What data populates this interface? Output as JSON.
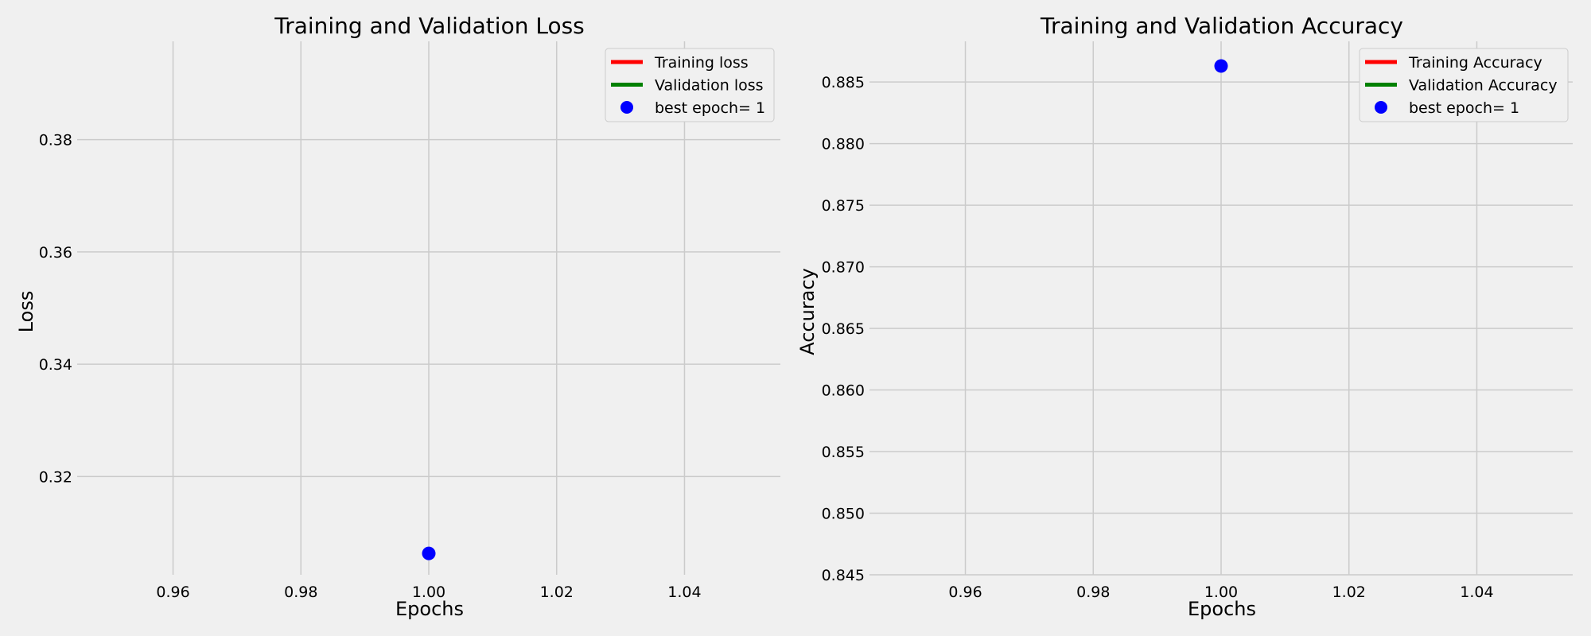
{
  "chart_data": [
    {
      "id": "loss",
      "type": "line",
      "title": "Training and Validation Loss",
      "xlabel": "Epochs",
      "ylabel": "Loss",
      "xlim": [
        0.945,
        1.055
      ],
      "ylim": [
        0.3025,
        0.3975
      ],
      "xticks": [
        0.96,
        0.98,
        1.0,
        1.02,
        1.04
      ],
      "xtick_labels": [
        "0.96",
        "0.98",
        "1.00",
        "1.02",
        "1.04"
      ],
      "yticks": [
        0.32,
        0.34,
        0.36,
        0.38
      ],
      "ytick_labels": [
        "0.32",
        "0.34",
        "0.36",
        "0.38"
      ],
      "grid": true,
      "legend_position": "top-right",
      "series": [
        {
          "name": "Training loss",
          "color": "#ff0000",
          "x": [
            1
          ],
          "y": [
            0.3063
          ]
        },
        {
          "name": "Validation loss",
          "color": "#008000",
          "x": [
            1
          ],
          "y": [
            0.3063
          ]
        }
      ],
      "best_point": {
        "name": "best epoch= 1",
        "color": "#0000ff",
        "x": 1,
        "y": 0.3063
      },
      "legend": [
        "Training loss",
        "Validation loss",
        "best epoch= 1"
      ]
    },
    {
      "id": "accuracy",
      "type": "line",
      "title": "Training and Validation Accuracy",
      "xlabel": "Epochs",
      "ylabel": "Accuracy",
      "xlim": [
        0.945,
        1.055
      ],
      "ylim": [
        0.845,
        0.8883
      ],
      "xticks": [
        0.96,
        0.98,
        1.0,
        1.02,
        1.04
      ],
      "xtick_labels": [
        "0.96",
        "0.98",
        "1.00",
        "1.02",
        "1.04"
      ],
      "yticks": [
        0.845,
        0.85,
        0.855,
        0.86,
        0.865,
        0.87,
        0.875,
        0.88,
        0.885
      ],
      "ytick_labels": [
        "0.845",
        "0.850",
        "0.855",
        "0.860",
        "0.865",
        "0.870",
        "0.875",
        "0.880",
        "0.885"
      ],
      "grid": true,
      "legend_position": "top-right",
      "series": [
        {
          "name": "Training Accuracy",
          "color": "#ff0000",
          "x": [
            1
          ],
          "y": [
            0.8863
          ]
        },
        {
          "name": "Validation Accuracy",
          "color": "#008000",
          "x": [
            1
          ],
          "y": [
            0.8863
          ]
        }
      ],
      "best_point": {
        "name": "best epoch= 1",
        "color": "#0000ff",
        "x": 1,
        "y": 0.8863
      },
      "legend": [
        "Training Accuracy",
        "Validation Accuracy",
        "best epoch= 1"
      ]
    }
  ],
  "style": {
    "background": "#f0f0f0",
    "grid_color": "#cbcbcb"
  }
}
